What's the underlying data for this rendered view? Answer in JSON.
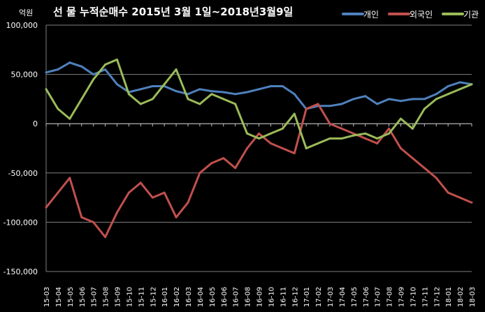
{
  "chart_data": {
    "type": "line",
    "title": "선 물  누적순매수  2015년 3월 1일~2018년3월9일",
    "unit": "억원",
    "ylim": [
      -150000,
      100000
    ],
    "y_ticks": [
      "100,000",
      "50,000",
      "0",
      "-50,000",
      "-100,000",
      "-150,000"
    ],
    "y_tick_values": [
      100000,
      50000,
      0,
      -50000,
      -100000,
      -150000
    ],
    "grid": true,
    "legend_position": "top-right",
    "categories": [
      "15-03",
      "15-04",
      "15-05",
      "15-06",
      "15-07",
      "15-08",
      "15-09",
      "15-10",
      "15-11",
      "15-12",
      "16-01",
      "16-02",
      "16-03",
      "16-04",
      "16-05",
      "16-06",
      "16-07",
      "16-08",
      "16-09",
      "16-10",
      "16-11",
      "16-12",
      "17-01",
      "17-02",
      "17-03",
      "17-04",
      "17-05",
      "17-06",
      "17-07",
      "17-08",
      "17-09",
      "17-10",
      "17-11",
      "17-12",
      "18-01",
      "18-02",
      "18-03"
    ],
    "series": [
      {
        "name": "개인",
        "color": "#4f81bd",
        "values": [
          52000,
          55000,
          62000,
          58000,
          50000,
          55000,
          40000,
          32000,
          35000,
          38000,
          38000,
          33000,
          30000,
          35000,
          33000,
          32000,
          30000,
          32000,
          35000,
          38000,
          38000,
          30000,
          15000,
          18000,
          18000,
          20000,
          25000,
          28000,
          20000,
          25000,
          23000,
          25000,
          25000,
          30000,
          38000,
          42000,
          40000
        ]
      },
      {
        "name": "외국인",
        "color": "#c0504d",
        "values": [
          -85000,
          -70000,
          -55000,
          -95000,
          -100000,
          -115000,
          -90000,
          -70000,
          -60000,
          -75000,
          -70000,
          -95000,
          -80000,
          -50000,
          -40000,
          -35000,
          -45000,
          -25000,
          -10000,
          -20000,
          -25000,
          -30000,
          15000,
          20000,
          0,
          -5000,
          -10000,
          -15000,
          -20000,
          -5000,
          -25000,
          -35000,
          -45000,
          -55000,
          -70000,
          -75000,
          -80000
        ]
      },
      {
        "name": "기관",
        "color": "#9bbb59",
        "values": [
          35000,
          15000,
          5000,
          25000,
          45000,
          60000,
          65000,
          30000,
          20000,
          25000,
          40000,
          55000,
          25000,
          20000,
          30000,
          25000,
          20000,
          -10000,
          -15000,
          -10000,
          -5000,
          10000,
          -25000,
          -20000,
          -15000,
          -15000,
          -12000,
          -10000,
          -15000,
          -10000,
          5000,
          -5000,
          15000,
          25000,
          30000,
          35000,
          40000
        ]
      }
    ]
  }
}
